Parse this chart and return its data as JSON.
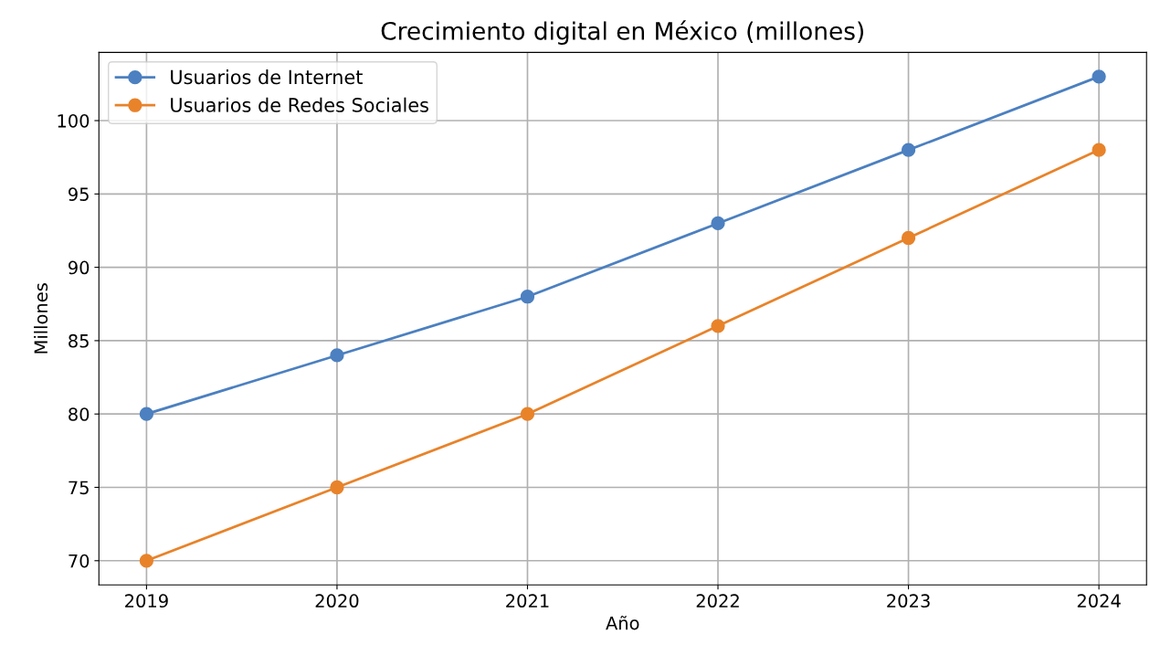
{
  "chart_data": {
    "type": "line",
    "title": "Crecimiento digital en México (millones)",
    "xlabel": "Año",
    "ylabel": "Millones",
    "x": [
      2019,
      2020,
      2021,
      2022,
      2023,
      2024
    ],
    "series": [
      {
        "name": "Usuarios de Internet",
        "color": "#4c80c0",
        "values": [
          80,
          84,
          88,
          93,
          98,
          103
        ]
      },
      {
        "name": "Usuarios de Redes Sociales",
        "color": "#e8832a",
        "values": [
          70,
          75,
          80,
          86,
          92,
          98
        ]
      }
    ],
    "xlim": [
      2018.75,
      2024.25
    ],
    "xticks": [
      2019,
      2020,
      2021,
      2022,
      2023,
      2024
    ],
    "ylim": [
      68.35,
      104.65
    ],
    "yticks": [
      70,
      75,
      80,
      85,
      90,
      95,
      100
    ],
    "grid": true,
    "legend": "top left",
    "marker": "circle",
    "line_style": "solid"
  }
}
